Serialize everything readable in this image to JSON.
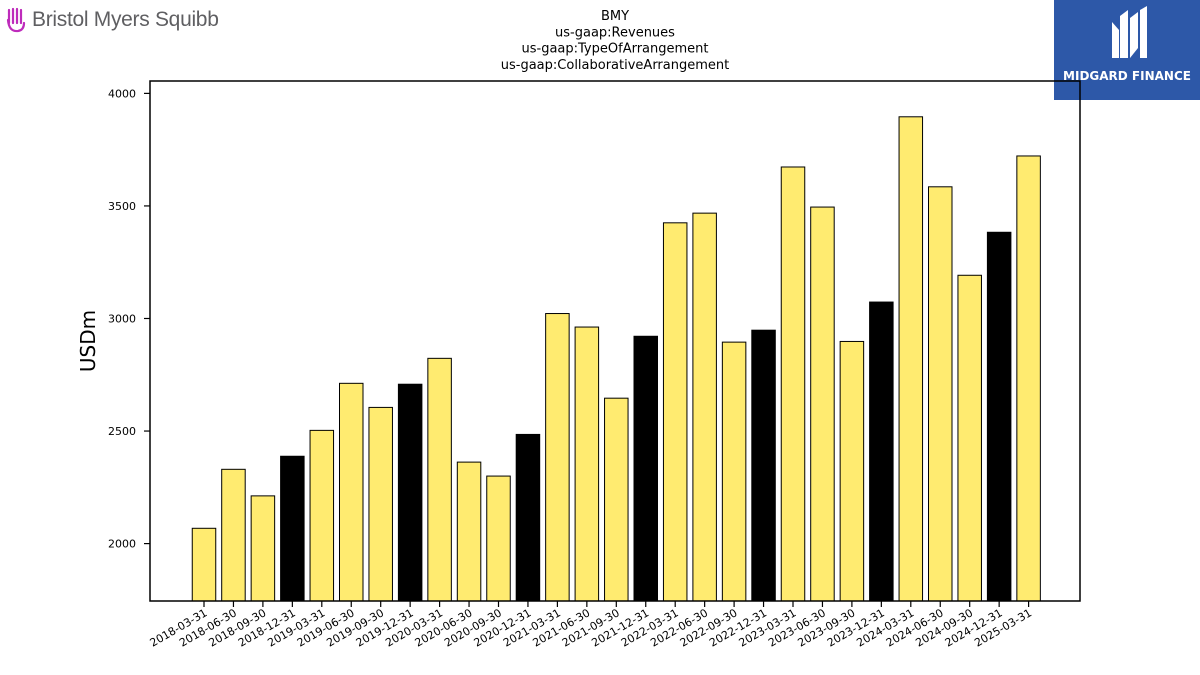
{
  "branding": {
    "company_logo_text": "Bristol Myers Squibb",
    "publisher_logo_text": "MIDGARD FINANCE"
  },
  "colors": {
    "bar_highlight": "#ffeb70",
    "bar_year_end": "#000000",
    "publisher_bg": "#2d58a8",
    "company_icon": "#be2bbb"
  },
  "chart_data": {
    "type": "bar",
    "title": [
      "BMY",
      "us-gaap:Revenues",
      "us-gaap:TypeOfArrangement",
      "us-gaap:CollaborativeArrangement"
    ],
    "xlabel": "",
    "ylabel": "USDm",
    "ylim": [
      1745,
      4055
    ],
    "yticks": [
      2000,
      2500,
      3000,
      3500,
      4000
    ],
    "grid": false,
    "categories": [
      "2018-03-31",
      "2018-06-30",
      "2018-09-30",
      "2018-12-31",
      "2019-03-31",
      "2019-06-30",
      "2019-09-30",
      "2019-12-31",
      "2020-03-31",
      "2020-06-30",
      "2020-09-30",
      "2020-12-31",
      "2021-03-31",
      "2021-06-30",
      "2021-09-30",
      "2021-12-31",
      "2022-03-31",
      "2022-06-30",
      "2022-09-30",
      "2022-12-31",
      "2023-03-31",
      "2023-06-30",
      "2023-09-30",
      "2023-12-31",
      "2024-03-31",
      "2024-06-30",
      "2024-09-30",
      "2024-12-31",
      "2025-03-31"
    ],
    "values": [
      2068,
      2330,
      2212,
      2388,
      2503,
      2712,
      2605,
      2708,
      2823,
      2362,
      2300,
      2485,
      3022,
      2962,
      2646,
      2921,
      3425,
      3468,
      2895,
      2948,
      3673,
      3495,
      2898,
      3073,
      3896,
      3585,
      3192,
      3383,
      3722
    ],
    "year_end_flags": [
      false,
      false,
      false,
      true,
      false,
      false,
      false,
      true,
      false,
      false,
      false,
      true,
      false,
      false,
      false,
      true,
      false,
      false,
      false,
      true,
      false,
      false,
      false,
      true,
      false,
      false,
      false,
      true,
      false
    ]
  }
}
